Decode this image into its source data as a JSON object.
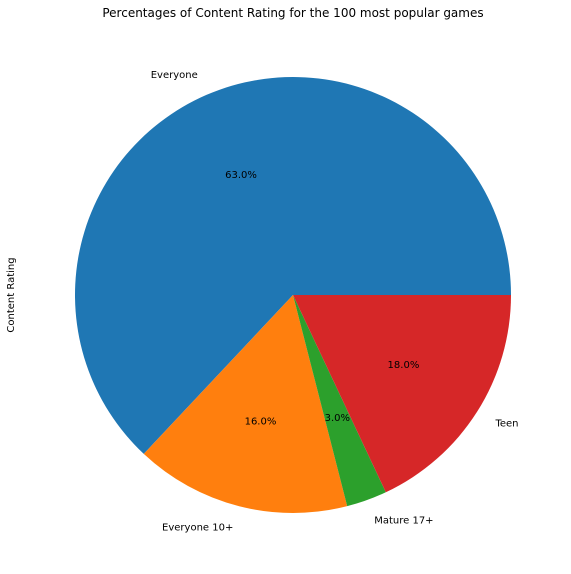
{
  "chart_data": {
    "type": "pie",
    "title": "Percentages of Content Rating for the 100 most popular games",
    "ylabel": "Content Rating",
    "xlabel": "",
    "start_angle_deg": 0,
    "direction": "counterclockwise",
    "slices": [
      {
        "label": "Everyone",
        "value": 63.0,
        "pct_label": "63.0%",
        "color": "#1f77b4"
      },
      {
        "label": "Everyone 10+",
        "value": 16.0,
        "pct_label": "16.0%",
        "color": "#ff7f0e"
      },
      {
        "label": "Mature 17+",
        "value": 3.0,
        "pct_label": "3.0%",
        "color": "#2ca02c"
      },
      {
        "label": "Teen",
        "value": 18.0,
        "pct_label": "18.0%",
        "color": "#d62728"
      }
    ]
  }
}
